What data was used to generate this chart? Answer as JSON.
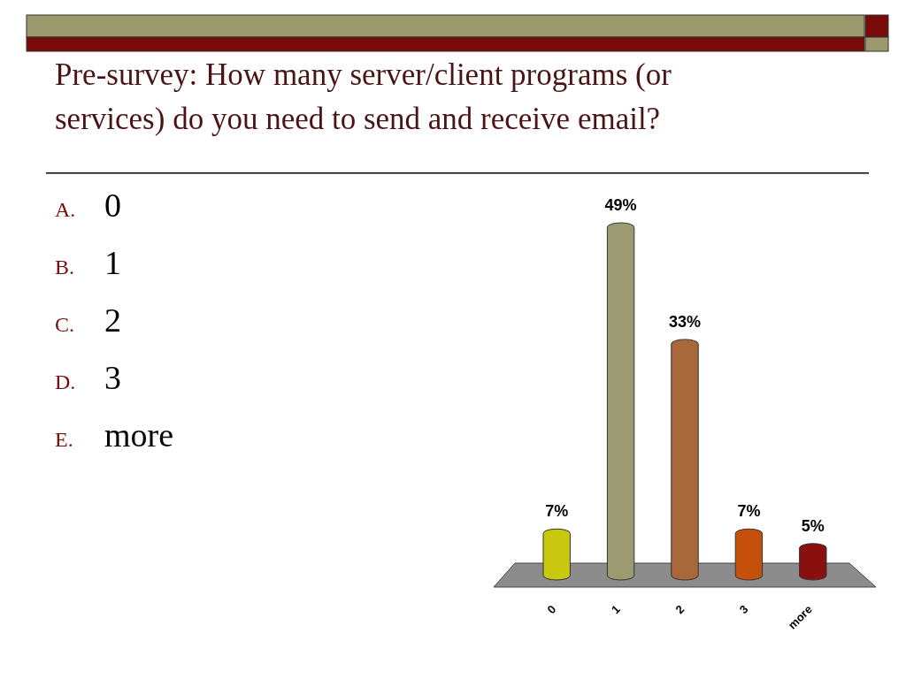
{
  "chart_data": {
    "type": "bar",
    "title": "Pre-survey: How many server/client programs (or services) do you need to send and receive email?",
    "categories": [
      "0",
      "1",
      "2",
      "3",
      "more"
    ],
    "values": [
      7,
      49,
      33,
      7,
      5
    ],
    "colors": [
      "#c8c810",
      "#9c9a70",
      "#a8683c",
      "#c4500c",
      "#8a1010"
    ],
    "value_labels": [
      "7%",
      "49%",
      "33%",
      "7%",
      "5%"
    ],
    "annotations": [
      "A. 0",
      "B. 1",
      "C. 2",
      "D. 3",
      "E. more"
    ]
  }
}
